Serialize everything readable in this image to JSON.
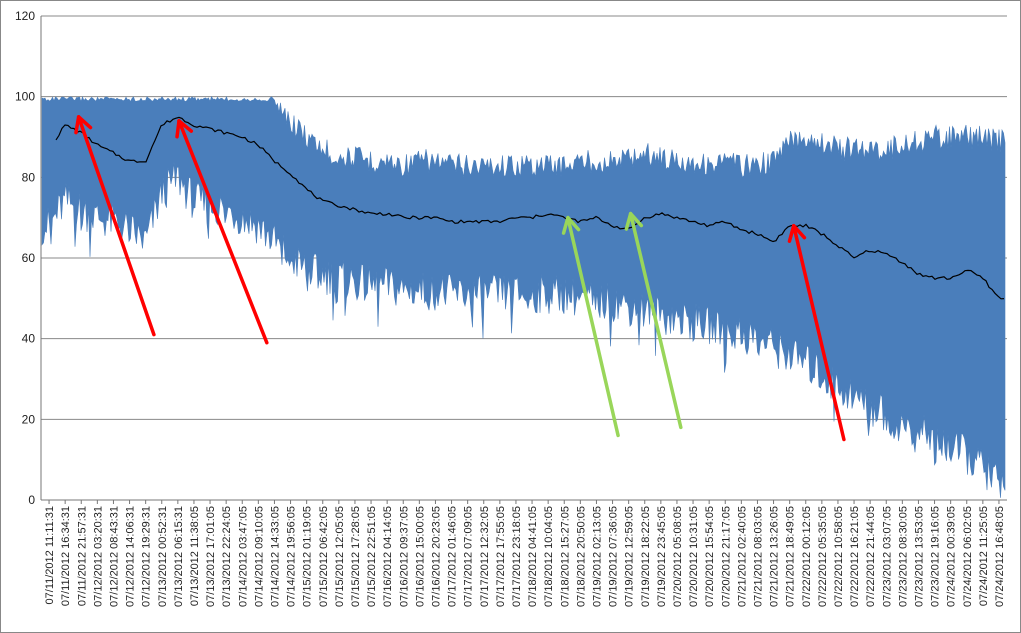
{
  "chart_data": {
    "type": "area",
    "title": "",
    "xlabel": "",
    "ylabel": "",
    "ylim": [
      0,
      120
    ],
    "yticks": [
      0,
      20,
      40,
      60,
      80,
      100,
      120
    ],
    "grid": true,
    "legend": "none",
    "categories": [
      "07/11/2012 11:11:31",
      "07/11/2012 16:34:31",
      "07/11/2012 21:57:31",
      "07/12/2012 03:20:31",
      "07/12/2012 08:43:31",
      "07/12/2012 14:06:31",
      "07/12/2012 19:29:31",
      "07/13/2012 00:52:31",
      "07/13/2012 06:15:31",
      "07/13/2012 11:38:05",
      "07/13/2012 17:01:05",
      "07/13/2012 22:24:05",
      "07/14/2012 03:47:05",
      "07/14/2012 09:10:05",
      "07/14/2012 14:33:05",
      "07/14/2012 19:56:05",
      "07/15/2012 01:19:05",
      "07/15/2012 06:42:05",
      "07/15/2012 12:05:05",
      "07/15/2012 17:28:05",
      "07/15/2012 22:51:05",
      "07/16/2012 04:14:05",
      "07/16/2012 09:37:05",
      "07/16/2012 15:00:05",
      "07/16/2012 20:23:05",
      "07/17/2012 01:46:05",
      "07/17/2012 07:09:05",
      "07/17/2012 12:32:05",
      "07/17/2012 17:55:05",
      "07/17/2012 23:18:05",
      "07/18/2012 04:41:05",
      "07/18/2012 10:04:05",
      "07/18/2012 15:27:05",
      "07/18/2012 20:50:05",
      "07/19/2012 02:13:05",
      "07/19/2012 07:36:05",
      "07/19/2012 12:59:05",
      "07/19/2012 18:22:05",
      "07/19/2012 23:45:05",
      "07/20/2012 05:08:05",
      "07/20/2012 10:31:05",
      "07/20/2012 15:54:05",
      "07/20/2012 21:17:05",
      "07/21/2012 02:40:05",
      "07/21/2012 08:03:05",
      "07/21/2012 13:26:05",
      "07/21/2012 18:49:05",
      "07/22/2012 00:12:05",
      "07/22/2012 05:35:05",
      "07/22/2012 10:58:05",
      "07/22/2012 16:21:05",
      "07/22/2012 21:44:05",
      "07/23/2012 03:07:05",
      "07/23/2012 08:30:05",
      "07/23/2012 13:53:05",
      "07/23/2012 19:16:05",
      "07/24/2012 00:39:05",
      "07/24/2012 06:02:05",
      "07/24/2012 11:25:05",
      "07/24/2012 16:48:05"
    ],
    "band": {
      "color": "#4a7ebb",
      "upper": [
        100,
        100,
        100,
        100,
        100,
        100,
        100,
        100,
        100,
        100,
        100,
        100,
        100,
        100,
        100,
        97,
        93,
        90,
        88,
        88,
        87,
        87,
        86,
        87,
        87,
        86,
        86,
        86,
        86,
        86,
        86,
        86,
        86,
        87,
        87,
        87,
        88,
        89,
        88,
        87,
        87,
        86,
        87,
        86,
        86,
        87,
        92,
        93,
        92,
        90,
        90,
        90,
        90,
        91,
        92,
        93,
        93,
        93,
        93,
        92
      ],
      "lower": [
        68,
        74,
        72,
        70,
        69,
        67,
        64,
        76,
        80,
        74,
        73,
        72,
        70,
        68,
        64,
        60,
        57,
        56,
        55,
        54,
        53,
        53,
        52,
        52,
        52,
        51,
        51,
        51,
        51,
        51,
        51,
        51,
        51,
        50,
        49,
        49,
        48,
        47,
        46,
        45,
        44,
        43,
        42,
        41,
        40,
        38,
        36,
        34,
        31,
        28,
        26,
        23,
        21,
        19,
        17,
        15,
        13,
        11,
        8,
        4
      ]
    },
    "series": [
      {
        "color": "#000000",
        "values": [
          87,
          93,
          91,
          88,
          86,
          84,
          84,
          93,
          95,
          93,
          92,
          91,
          90,
          88,
          84,
          81,
          77,
          74,
          73,
          72,
          71,
          71,
          70,
          70,
          70,
          69,
          69,
          69,
          69,
          70,
          70,
          71,
          70,
          69,
          70,
          68,
          67,
          70,
          71,
          70,
          69,
          68,
          69,
          67,
          66,
          64,
          68,
          68,
          66,
          63,
          60,
          62,
          61,
          59,
          56,
          55,
          55,
          57,
          55,
          50
        ]
      }
    ],
    "arrows": [
      {
        "color": "#ff0000",
        "from": [
          9,
          41
        ],
        "to": [
          3,
          95
        ]
      },
      {
        "color": "#ff0000",
        "from": [
          18,
          39
        ],
        "to": [
          11,
          94
        ]
      },
      {
        "color": "#99d65a",
        "from": [
          46,
          16
        ],
        "to": [
          42,
          70
        ]
      },
      {
        "color": "#99d65a",
        "from": [
          51,
          18
        ],
        "to": [
          47,
          71
        ]
      },
      {
        "color": "#ff0000",
        "from": [
          64,
          15
        ],
        "to": [
          60,
          68
        ]
      }
    ],
    "arrow_x_range": [
      0,
      77
    ]
  }
}
